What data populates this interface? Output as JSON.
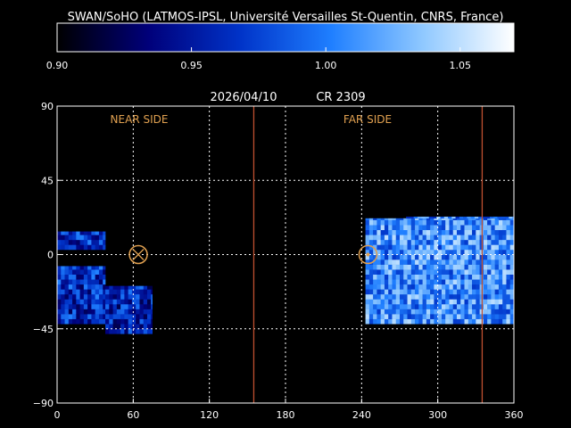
{
  "header": {
    "credit": "SWAN/SoHO (LATMOS-IPSL, Université Versailles St-Quentin, CNRS, France)",
    "date": "2026/04/10",
    "rotation": "CR 2309"
  },
  "colorbar": {
    "colors": [
      "#000000",
      "#00007a",
      "#0033c8",
      "#1f7fff",
      "#8fc8ff",
      "#ffffff"
    ],
    "range": [
      0.9,
      1.07
    ],
    "ticks": [
      "0.90",
      "0.95",
      "1.00",
      "1.05"
    ],
    "tick_values": [
      0.9,
      0.95,
      1.0,
      1.05
    ]
  },
  "map": {
    "near_side_label": "NEAR SIDE",
    "far_side_label": "FAR SIDE",
    "label_color": "#e0a050",
    "line_color": "#c05030",
    "grid_color": "#ffffff",
    "near_side_marker": {
      "lon": 64,
      "lat": 0
    },
    "far_side_marker": {
      "lon": 245,
      "lat": 0
    },
    "boundary_lines_lon": [
      155,
      335
    ]
  },
  "chart_data": {
    "type": "heatmap",
    "title": "2026/04/10    CR 2309",
    "xlabel": "",
    "ylabel": "",
    "xlim": [
      0,
      360
    ],
    "ylim": [
      -90,
      90
    ],
    "x_ticks": [
      0,
      60,
      120,
      180,
      240,
      300,
      360
    ],
    "x_tick_labels": [
      "0",
      "60",
      "120",
      "180",
      "240",
      "300",
      "360"
    ],
    "y_ticks": [
      90,
      45,
      0,
      -45,
      -90
    ],
    "y_tick_labels": [
      "90",
      "45",
      "0",
      "−45",
      "−90"
    ],
    "grid": true,
    "regions": [
      {
        "lon": [
          0,
          38
        ],
        "lat": [
          3,
          14
        ],
        "mean": 0.965
      },
      {
        "lon": [
          0,
          38
        ],
        "lat": [
          -42,
          -7
        ],
        "mean": 0.965
      },
      {
        "lon": [
          38,
          75
        ],
        "lat": [
          -48,
          -19
        ],
        "mean": 0.96
      },
      {
        "lon": [
          243,
          360
        ],
        "lat": [
          -42,
          22
        ],
        "mean": 1.01
      },
      {
        "lon": [
          275,
          360
        ],
        "lat": [
          22,
          23
        ],
        "mean": 1.0
      }
    ]
  }
}
